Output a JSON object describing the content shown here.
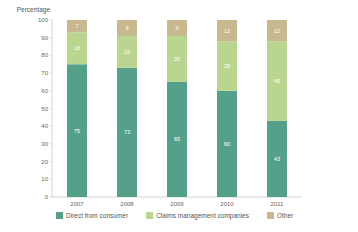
{
  "chart_data": {
    "type": "bar",
    "stacked": true,
    "data_labels": true,
    "grid": false,
    "legend": "bottom",
    "y_label": "Percentage",
    "categories": [
      "2007",
      "2008",
      "2009",
      "2010",
      "2011"
    ],
    "series": [
      {
        "name": "Direct from consumer",
        "color": "#55a08a",
        "values": [
          75,
          73,
          65,
          60,
          43
        ]
      },
      {
        "name": "Claims management companies",
        "color": "#bad58f",
        "values": [
          18,
          18,
          26,
          28,
          45
        ]
      },
      {
        "name": "Other",
        "color": "#c7b88f",
        "values": [
          7,
          9,
          9,
          12,
          12
        ]
      }
    ],
    "ylim": [
      0,
      100
    ],
    "yticks": [
      0,
      10,
      20,
      30,
      40,
      50,
      60,
      70,
      80,
      90,
      100
    ]
  }
}
